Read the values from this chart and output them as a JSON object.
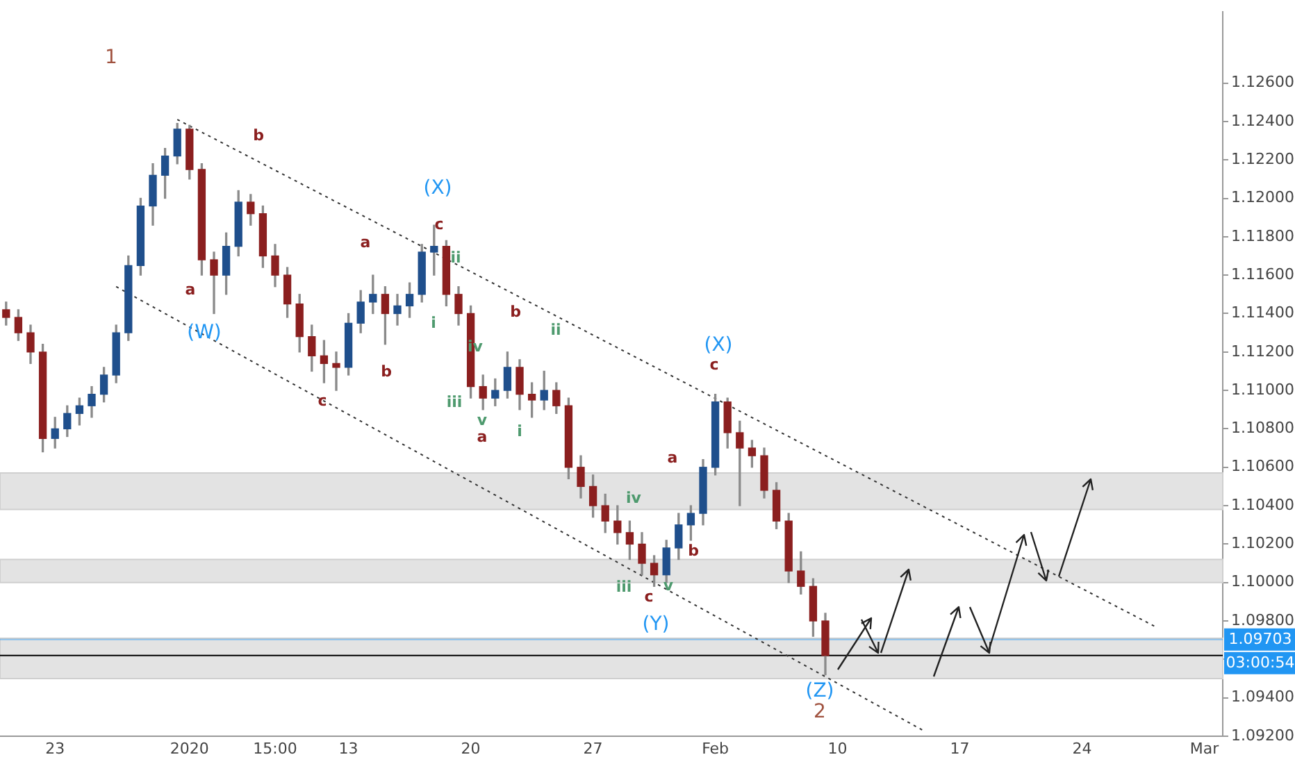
{
  "chart_data": {
    "type": "candlestick",
    "categories": [
      null,
      null,
      null,
      null,
      "23",
      null,
      null,
      null,
      null,
      null,
      null,
      null,
      null,
      null,
      null,
      "2020",
      null,
      null,
      null,
      null,
      null,
      null,
      "15:00",
      null,
      null,
      null,
      null,
      null,
      "13",
      null,
      null,
      null,
      null,
      null,
      null,
      null,
      null,
      null,
      "20",
      null,
      null,
      null,
      null,
      null,
      null,
      null,
      null,
      null,
      "27",
      null,
      null,
      null,
      null,
      null,
      null,
      null,
      null,
      null,
      "Feb",
      null,
      null,
      null,
      null,
      null,
      null,
      null,
      null,
      null,
      "10",
      null,
      null,
      null,
      null,
      null,
      null,
      null,
      null,
      null,
      "17",
      null,
      null,
      null,
      null,
      null,
      null,
      null,
      null,
      null,
      "24",
      null,
      null,
      null,
      null,
      null,
      null,
      null,
      null,
      null,
      "Mar",
      null
    ],
    "ohlc": [
      [
        1.1142,
        1.1146,
        1.1134,
        1.1138
      ],
      [
        1.1138,
        1.1142,
        1.1126,
        1.113
      ],
      [
        1.113,
        1.1134,
        1.1114,
        1.112
      ],
      [
        1.112,
        1.1124,
        1.1068,
        1.1075
      ],
      [
        1.1075,
        1.1086,
        1.107,
        1.108
      ],
      [
        1.108,
        1.1092,
        1.1076,
        1.1088
      ],
      [
        1.1088,
        1.1096,
        1.1082,
        1.1092
      ],
      [
        1.1092,
        1.1102,
        1.1086,
        1.1098
      ],
      [
        1.1098,
        1.1112,
        1.1094,
        1.1108
      ],
      [
        1.1108,
        1.1134,
        1.1104,
        1.113
      ],
      [
        1.113,
        1.117,
        1.1126,
        1.1165
      ],
      [
        1.1165,
        1.12,
        1.116,
        1.1196
      ],
      [
        1.1196,
        1.1218,
        1.1186,
        1.1212
      ],
      [
        1.1212,
        1.1226,
        1.12,
        1.1222
      ],
      [
        1.1222,
        1.1239,
        1.1218,
        1.1236
      ],
      [
        1.1236,
        1.1238,
        1.121,
        1.1215
      ],
      [
        1.1215,
        1.1218,
        1.116,
        1.1168
      ],
      [
        1.1168,
        1.1172,
        1.114,
        1.116
      ],
      [
        1.116,
        1.1182,
        1.115,
        1.1175
      ],
      [
        1.1175,
        1.1204,
        1.117,
        1.1198
      ],
      [
        1.1198,
        1.1202,
        1.1186,
        1.1192
      ],
      [
        1.1192,
        1.1196,
        1.1164,
        1.117
      ],
      [
        1.117,
        1.1176,
        1.1154,
        1.116
      ],
      [
        1.116,
        1.1164,
        1.1138,
        1.1145
      ],
      [
        1.1145,
        1.115,
        1.112,
        1.1128
      ],
      [
        1.1128,
        1.1134,
        1.111,
        1.1118
      ],
      [
        1.1118,
        1.1126,
        1.1104,
        1.1114
      ],
      [
        1.1114,
        1.112,
        1.11,
        1.1112
      ],
      [
        1.1112,
        1.114,
        1.1108,
        1.1135
      ],
      [
        1.1135,
        1.1152,
        1.113,
        1.1146
      ],
      [
        1.1146,
        1.116,
        1.114,
        1.115
      ],
      [
        1.115,
        1.1154,
        1.1124,
        1.114
      ],
      [
        1.114,
        1.115,
        1.1134,
        1.1144
      ],
      [
        1.1144,
        1.1156,
        1.1138,
        1.115
      ],
      [
        1.115,
        1.1176,
        1.1146,
        1.1172
      ],
      [
        1.1172,
        1.1186,
        1.116,
        1.1175
      ],
      [
        1.1175,
        1.1178,
        1.1144,
        1.115
      ],
      [
        1.115,
        1.1154,
        1.1134,
        1.114
      ],
      [
        1.114,
        1.1144,
        1.1096,
        1.1102
      ],
      [
        1.1102,
        1.1108,
        1.109,
        1.1096
      ],
      [
        1.1096,
        1.1106,
        1.1092,
        1.11
      ],
      [
        1.11,
        1.112,
        1.1096,
        1.1112
      ],
      [
        1.1112,
        1.1116,
        1.109,
        1.1098
      ],
      [
        1.1098,
        1.1104,
        1.1086,
        1.1095
      ],
      [
        1.1095,
        1.111,
        1.109,
        1.11
      ],
      [
        1.11,
        1.1104,
        1.1088,
        1.1092
      ],
      [
        1.1092,
        1.1096,
        1.1054,
        1.106
      ],
      [
        1.106,
        1.1066,
        1.1044,
        1.105
      ],
      [
        1.105,
        1.1056,
        1.1034,
        1.104
      ],
      [
        1.104,
        1.1046,
        1.1026,
        1.1032
      ],
      [
        1.1032,
        1.104,
        1.102,
        1.1026
      ],
      [
        1.1026,
        1.1032,
        1.1012,
        1.102
      ],
      [
        1.102,
        1.1026,
        1.1004,
        1.101
      ],
      [
        1.101,
        1.1014,
        1.0998,
        1.1004
      ],
      [
        1.1004,
        1.1022,
        1.1,
        1.1018
      ],
      [
        1.1018,
        1.1036,
        1.1012,
        1.103
      ],
      [
        1.103,
        1.104,
        1.1022,
        1.1036
      ],
      [
        1.1036,
        1.1064,
        1.103,
        1.106
      ],
      [
        1.106,
        1.1098,
        1.1056,
        1.1094
      ],
      [
        1.1094,
        1.1096,
        1.107,
        1.1078
      ],
      [
        1.1078,
        1.1084,
        1.104,
        1.107
      ],
      [
        1.107,
        1.1074,
        1.106,
        1.1066
      ],
      [
        1.1066,
        1.107,
        1.1044,
        1.1048
      ],
      [
        1.1048,
        1.1052,
        1.1028,
        1.1032
      ],
      [
        1.1032,
        1.1036,
        1.1,
        1.1006
      ],
      [
        1.1006,
        1.1016,
        1.0994,
        1.0998
      ],
      [
        1.0998,
        1.1002,
        1.0972,
        1.098
      ],
      [
        1.098,
        1.0984,
        1.0952,
        1.0962
      ],
      null,
      null,
      null,
      null,
      null,
      null,
      null,
      null,
      null,
      null,
      null,
      null,
      null,
      null,
      null,
      null,
      null,
      null,
      null,
      null,
      null,
      null,
      null,
      null,
      null,
      null,
      null,
      null,
      null,
      null,
      null,
      null
    ],
    "colors": [
      "#8b1f1f",
      "#8b1f1f",
      "#8b1f1f",
      "#8b1f1f",
      "#1f4f8c",
      "#1f4f8c",
      "#1f4f8c",
      "#1f4f8c",
      "#1f4f8c",
      "#1f4f8c",
      "#1f4f8c",
      "#1f4f8c",
      "#1f4f8c",
      "#1f4f8c",
      "#1f4f8c",
      "#8b1f1f",
      "#8b1f1f",
      "#8b1f1f",
      "#1f4f8c",
      "#1f4f8c",
      "#8b1f1f",
      "#8b1f1f",
      "#8b1f1f",
      "#8b1f1f",
      "#8b1f1f",
      "#8b1f1f",
      "#8b1f1f",
      "#8b1f1f",
      "#1f4f8c",
      "#1f4f8c",
      "#1f4f8c",
      "#8b1f1f",
      "#1f4f8c",
      "#1f4f8c",
      "#1f4f8c",
      "#1f4f8c",
      "#8b1f1f",
      "#8b1f1f",
      "#8b1f1f",
      "#8b1f1f",
      "#1f4f8c",
      "#1f4f8c",
      "#8b1f1f",
      "#8b1f1f",
      "#1f4f8c",
      "#8b1f1f",
      "#8b1f1f",
      "#8b1f1f",
      "#8b1f1f",
      "#8b1f1f",
      "#8b1f1f",
      "#8b1f1f",
      "#8b1f1f",
      "#8b1f1f",
      "#1f4f8c",
      "#1f4f8c",
      "#1f4f8c",
      "#1f4f8c",
      "#1f4f8c",
      "#8b1f1f",
      "#8b1f1f",
      "#8b1f1f",
      "#8b1f1f",
      "#8b1f1f",
      "#8b1f1f",
      "#8b1f1f",
      "#8b1f1f",
      "#8b1f1f",
      null,
      null,
      null,
      null,
      null,
      null,
      null,
      null,
      null,
      null,
      null,
      null,
      null,
      null,
      null,
      null,
      null,
      null,
      null,
      null,
      null,
      null,
      null,
      null,
      null,
      null,
      null,
      null,
      null,
      null,
      null,
      null
    ],
    "series": [
      {
        "type": "line",
        "color": "#333333",
        "line_style": "dotted",
        "values": [
          null,
          null,
          null,
          null,
          null,
          null,
          null,
          null,
          null,
          null,
          null,
          null,
          null,
          null,
          1.1241,
          null,
          null,
          null,
          null,
          null,
          null,
          null,
          null,
          null,
          null,
          null,
          null,
          null,
          null,
          null,
          null,
          null,
          null,
          null,
          null,
          null,
          null,
          null,
          null,
          null,
          null,
          null,
          null,
          null,
          null,
          null,
          null,
          null,
          null,
          null,
          null,
          null,
          null,
          null,
          null,
          null,
          null,
          null,
          null,
          null,
          null,
          null,
          null,
          null,
          null,
          null,
          null,
          null,
          null,
          null,
          null,
          null,
          null,
          null,
          null,
          null,
          null,
          null,
          null,
          null,
          null,
          null,
          null,
          null,
          null,
          null,
          null,
          null,
          null,
          null,
          null,
          null,
          null,
          null,
          1.0977,
          null,
          null,
          null,
          null,
          null
        ]
      },
      {
        "type": "line",
        "color": "#333333",
        "line_style": "dotted",
        "values": [
          null,
          null,
          null,
          null,
          null,
          null,
          null,
          null,
          null,
          1.1154,
          null,
          null,
          null,
          null,
          null,
          null,
          null,
          null,
          null,
          null,
          null,
          null,
          null,
          null,
          null,
          null,
          null,
          null,
          null,
          null,
          null,
          null,
          null,
          null,
          null,
          null,
          null,
          null,
          null,
          null,
          null,
          null,
          null,
          null,
          null,
          null,
          null,
          null,
          null,
          null,
          null,
          null,
          null,
          null,
          null,
          null,
          null,
          null,
          null,
          null,
          null,
          null,
          null,
          null,
          null,
          null,
          null,
          null,
          null,
          null,
          null,
          null,
          null,
          null,
          null,
          1.0923,
          null,
          null,
          null,
          null,
          null,
          null,
          null,
          null,
          null,
          null,
          null,
          null,
          null,
          null,
          null,
          null,
          null,
          null,
          null,
          null,
          null,
          null,
          null,
          null
        ]
      }
    ],
    "marker": "none",
    "ylim": [
      1.092,
      1.1297
    ],
    "yticks": [
      {
        "value": 1.092,
        "label": "1.09200"
      },
      {
        "value": 1.094,
        "label": "1.09400"
      },
      {
        "value": 1.096,
        "label": null
      },
      {
        "value": 1.098,
        "label": "1.09800"
      },
      {
        "value": 1.1,
        "label": "1.10000"
      },
      {
        "value": 1.102,
        "label": "1.10200"
      },
      {
        "value": 1.104,
        "label": "1.10400"
      },
      {
        "value": 1.106,
        "label": "1.10600"
      },
      {
        "value": 1.108,
        "label": "1.10800"
      },
      {
        "value": 1.11,
        "label": "1.11000"
      },
      {
        "value": 1.112,
        "label": "1.11200"
      },
      {
        "value": 1.114,
        "label": "1.11400"
      },
      {
        "value": 1.116,
        "label": "1.11600"
      },
      {
        "value": 1.118,
        "label": "1.11800"
      },
      {
        "value": 1.12,
        "label": "1.12000"
      },
      {
        "value": 1.122,
        "label": "1.12200"
      },
      {
        "value": 1.124,
        "label": "1.12400"
      },
      {
        "value": 1.126,
        "label": "1.12600"
      }
    ],
    "grid": false,
    "legend": false,
    "bands": [
      {
        "axis": "y",
        "from": 1.1038,
        "to": 1.1057,
        "color": "#e3e3e3"
      },
      {
        "axis": "y",
        "from": 1.1,
        "to": 1.1012,
        "color": "#e3e3e3"
      },
      {
        "axis": "y",
        "from": 1.095,
        "to": 1.0971,
        "color": "#e3e3e3"
      }
    ],
    "ref_lines": [
      {
        "axis": "y",
        "value": 1.09703,
        "label": "1.09703",
        "color": "#2196f3"
      },
      {
        "axis": "y",
        "value": 1.0962,
        "color": "#000000"
      }
    ],
    "annotations": [
      "03:00:54",
      "1",
      "b",
      "a",
      "(W)",
      "c",
      "a",
      "b",
      "(X)",
      "c",
      "ii",
      "i",
      "iv",
      "iii",
      "v",
      "a",
      "b",
      "i",
      "ii",
      "(X)",
      "c",
      "a",
      "iv",
      "b",
      "iii",
      "v",
      "c",
      "(Y)",
      "(Z)",
      "2"
    ]
  }
}
